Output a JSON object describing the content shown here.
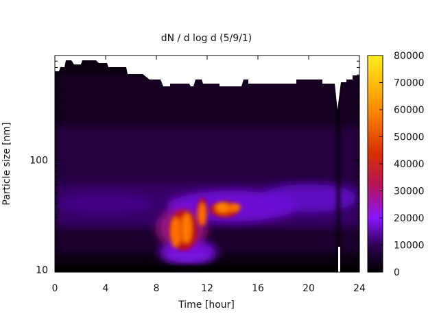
{
  "chart_data": {
    "type": "heatmap",
    "title": "dN / d log d (5/9/1)",
    "xlabel": "Time [hour]",
    "ylabel": "Particle size [nm]",
    "xlim": [
      0,
      24
    ],
    "x_ticks": [
      "0",
      "4",
      "8",
      "12",
      "16",
      "20",
      "24"
    ],
    "y_scale": "log",
    "ylim": [
      9.5,
      900
    ],
    "y_ticks": [
      "10",
      "100"
    ],
    "colorbar": {
      "range": [
        0,
        80000
      ],
      "ticks": [
        "0",
        "10000",
        "20000",
        "30000",
        "40000",
        "50000",
        "60000",
        "70000",
        "80000"
      ],
      "colormap": [
        "#000000",
        "#5a0078",
        "#8a14ff",
        "#c40000",
        "#ff7a00",
        "#ffe51c"
      ]
    },
    "grid": false,
    "features": [
      {
        "time_range": [
          9.0,
          11.2
        ],
        "size_range": [
          15,
          35
        ],
        "peak": 60000
      },
      {
        "time_range": [
          11.2,
          12.0
        ],
        "size_range": [
          25,
          45
        ],
        "peak": 55000
      },
      {
        "time_range": [
          12.2,
          14.5
        ],
        "size_range": [
          30,
          42
        ],
        "peak": 58000
      },
      {
        "time_range": [
          0,
          24
        ],
        "size_range": [
          25,
          60
        ],
        "peak": 20000
      }
    ]
  }
}
